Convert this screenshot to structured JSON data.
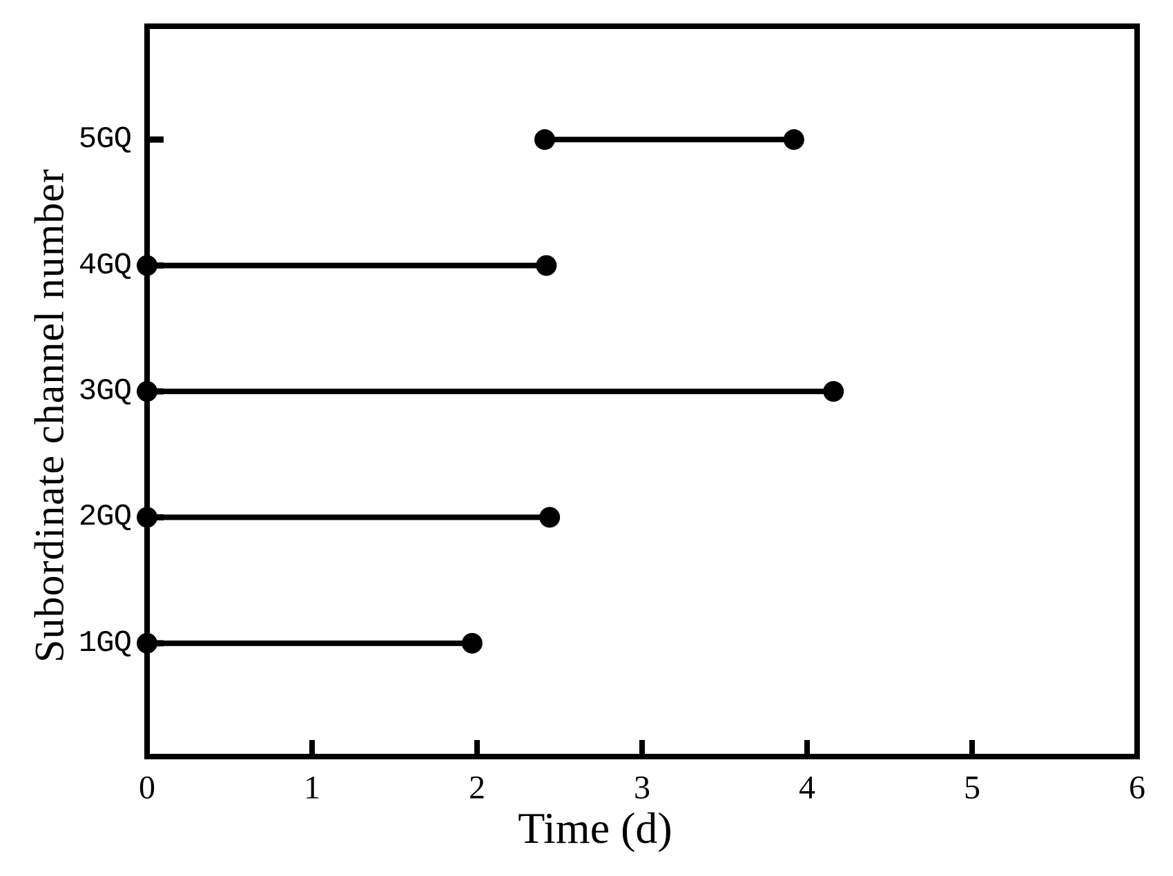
{
  "figure": {
    "background": "#ffffff",
    "foreground": "#000000"
  },
  "chart_data": {
    "type": "bar",
    "subtype": "horizontal-interval-gantt",
    "title": "",
    "xlabel": "Time (d)",
    "ylabel": "Subordinate channel number",
    "xlim": [
      0,
      6
    ],
    "ylim_numeric": [
      0.1,
      5.9
    ],
    "x_ticks": [
      "0",
      "1",
      "2",
      "3",
      "4",
      "5",
      "6"
    ],
    "categories": [
      "1GQ",
      "2GQ",
      "3GQ",
      "4GQ",
      "5GQ"
    ],
    "series": [
      {
        "name": "1GQ",
        "start": 0,
        "end": 1.97
      },
      {
        "name": "2GQ",
        "start": 0,
        "end": 2.44
      },
      {
        "name": "3GQ",
        "start": 0,
        "end": 4.16
      },
      {
        "name": "4GQ",
        "start": 0,
        "end": 2.42
      },
      {
        "name": "5GQ",
        "start": 2.41,
        "end": 3.92
      }
    ],
    "marker": "filled-circle-endpoints",
    "legend": "none",
    "grid": "off",
    "colors": {
      "line": "#000000",
      "marker": "#000000",
      "axes": "#000000"
    }
  }
}
